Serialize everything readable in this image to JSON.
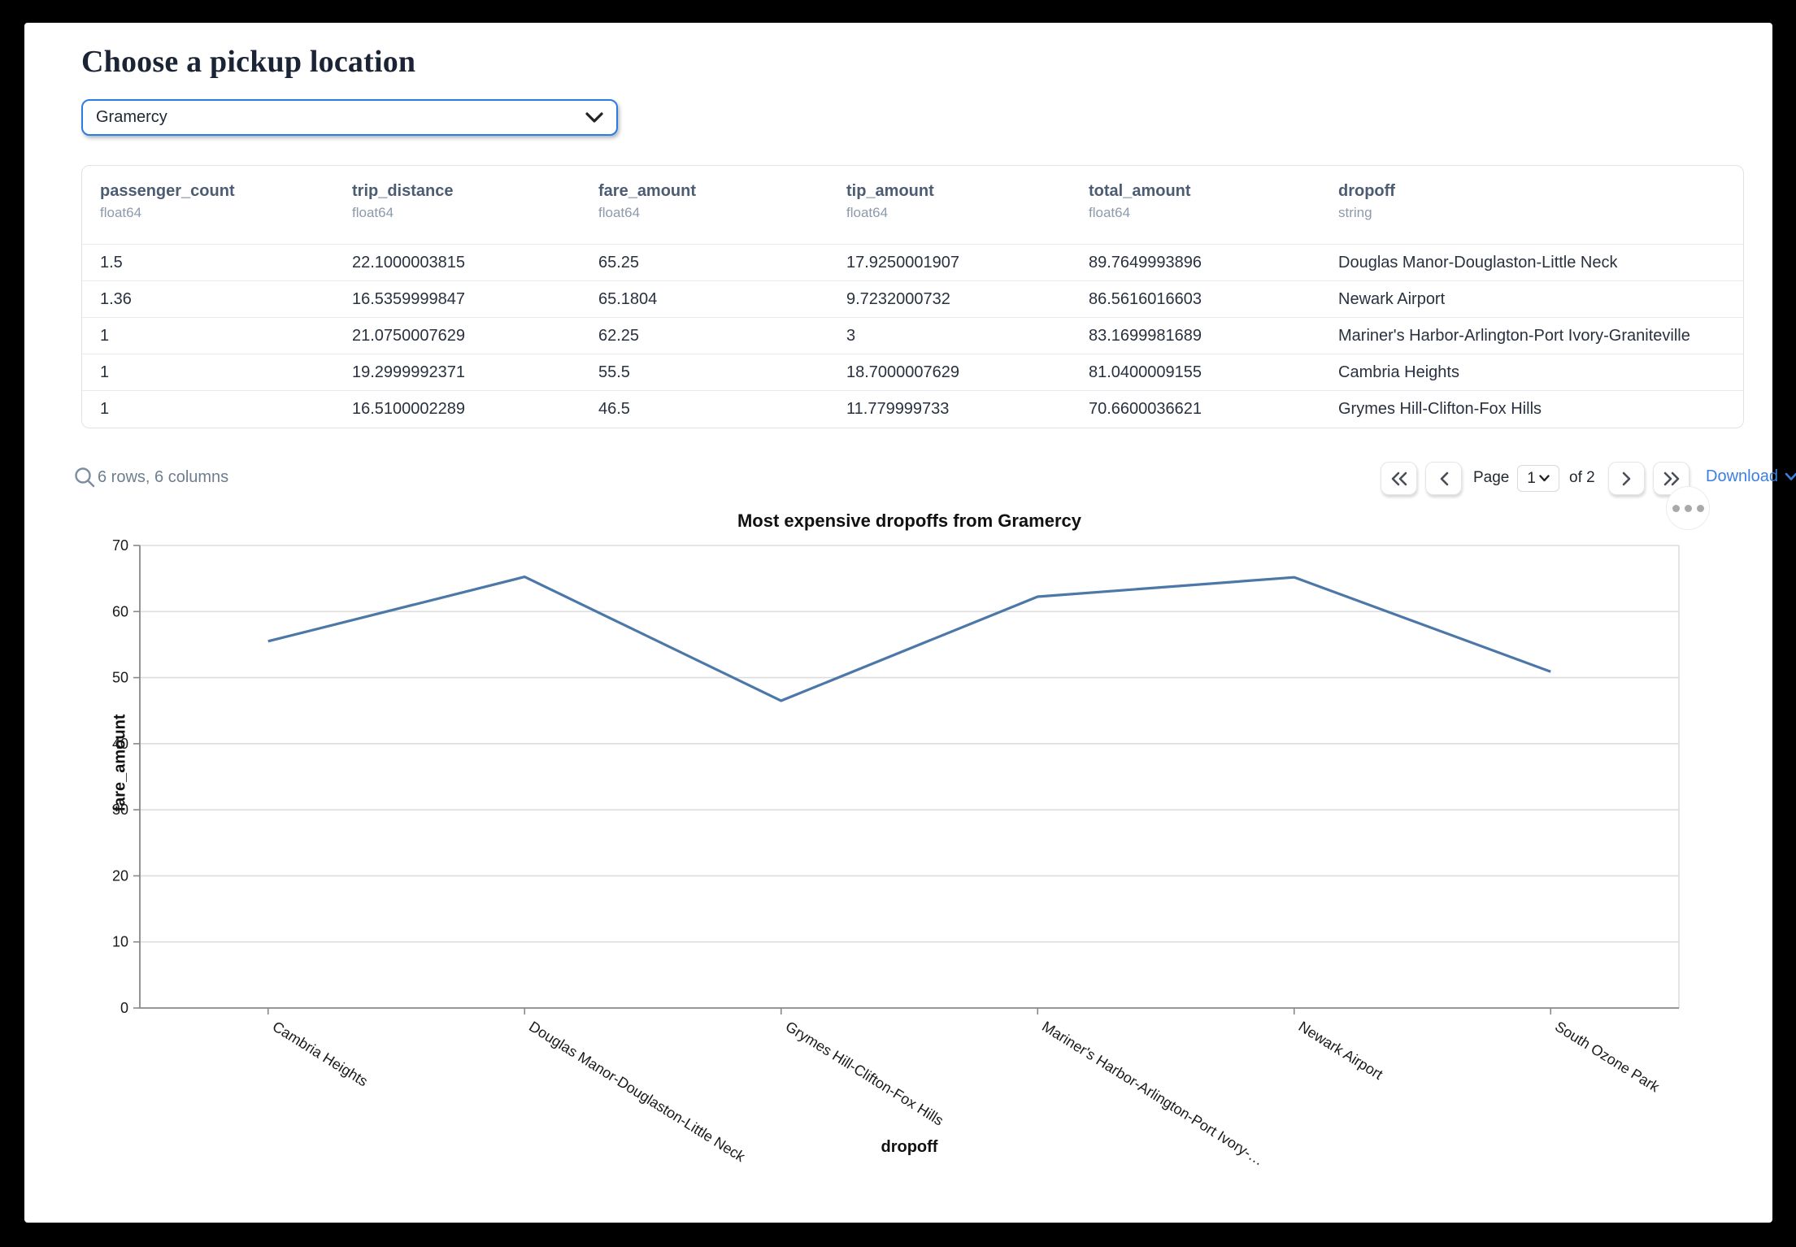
{
  "page": {
    "title": "Choose a pickup location"
  },
  "pickup_select": {
    "value": "Gramercy"
  },
  "table": {
    "columns": [
      {
        "name": "passenger_count",
        "dtype": "float64"
      },
      {
        "name": "trip_distance",
        "dtype": "float64"
      },
      {
        "name": "fare_amount",
        "dtype": "float64"
      },
      {
        "name": "tip_amount",
        "dtype": "float64"
      },
      {
        "name": "total_amount",
        "dtype": "float64"
      },
      {
        "name": "dropoff",
        "dtype": "string"
      }
    ],
    "rows": [
      [
        "1.5",
        "22.1000003815",
        "65.25",
        "17.9250001907",
        "89.7649993896",
        "Douglas Manor-Douglaston-Little Neck"
      ],
      [
        "1.36",
        "16.5359999847",
        "65.1804",
        "9.7232000732",
        "86.5616016603",
        "Newark Airport"
      ],
      [
        "1",
        "21.0750007629",
        "62.25",
        "3",
        "83.1699981689",
        "Mariner's Harbor-Arlington-Port Ivory-Graniteville"
      ],
      [
        "1",
        "19.2999992371",
        "55.5",
        "18.7000007629",
        "81.0400009155",
        "Cambria Heights"
      ],
      [
        "1",
        "16.5100002289",
        "46.5",
        "11.779999733",
        "70.6600036621",
        "Grymes Hill-Clifton-Fox Hills"
      ]
    ]
  },
  "footer": {
    "summary": "6 rows, 6 columns",
    "page_label": "Page",
    "page_value": "1",
    "of_label": "of 2",
    "download_label": "Download"
  },
  "icons": {
    "search": "search-icon",
    "first_page": "double-chevron-left-icon",
    "prev_page": "chevron-left-icon",
    "next_page": "chevron-right-icon",
    "last_page": "double-chevron-right-icon",
    "caret": "chevron-down-icon",
    "menu": "ellipsis-menu-icon"
  },
  "chart_data": {
    "type": "line",
    "title": "Most expensive dropoffs from Gramercy",
    "xlabel": "dropoff",
    "ylabel": "fare_amount",
    "categories": [
      "Cambria Heights",
      "Douglas Manor-Douglaston-Little Neck",
      "Grymes Hill-Clifton-Fox Hills",
      "Mariner's Harbor-Arlington-Port Ivory-Graniteville",
      "Newark Airport",
      "South Ozone Park"
    ],
    "x_tick_labels": [
      "Cambria Heights",
      "Douglas Manor-Douglaston-Little Neck",
      "Grymes Hill-Clifton-Fox Hills",
      "Mariner's Harbor-Arlington-Port Ivory-…",
      "Newark Airport",
      "South Ozone Park"
    ],
    "values": [
      55.5,
      65.25,
      46.5,
      62.25,
      65.1804,
      50.9
    ],
    "ylim": [
      0,
      70
    ],
    "yticks": [
      0,
      10,
      20,
      30,
      40,
      50,
      60,
      70
    ],
    "grid": true,
    "legend": "none",
    "line_color": "#4c78a8"
  },
  "colors": {
    "select_border": "#2b7ce0",
    "download_link": "#3c7fe1",
    "header_text": "#4b5c73",
    "dtype_text": "#8c9aac",
    "grid": "#dddddd",
    "axis_domain": "#888888"
  }
}
